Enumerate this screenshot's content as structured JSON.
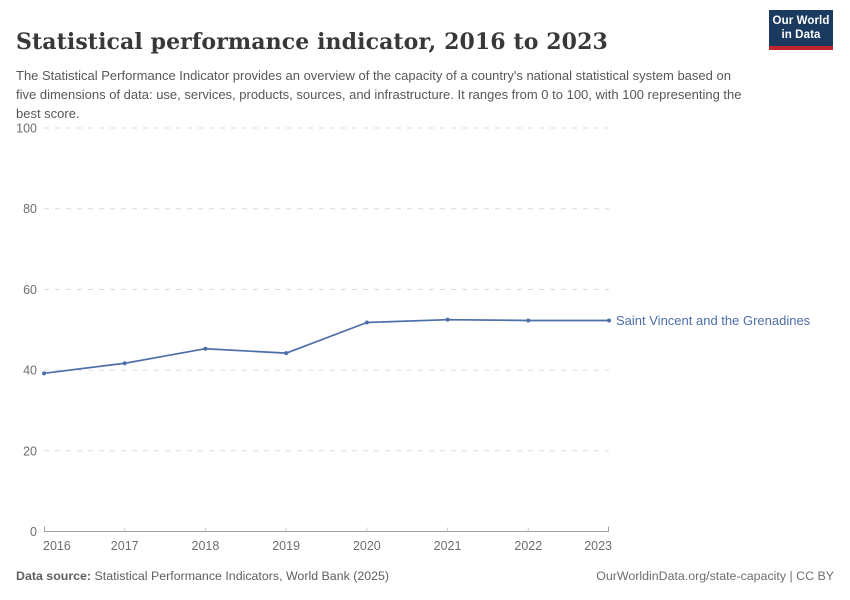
{
  "header": {
    "title": "Statistical performance indicator, 2016 to 2023",
    "subtitle": "The Statistical Performance Indicator provides an overview of the capacity of a country's national statistical system based on five dimensions of data: use, services, products, sources, and infrastructure. It ranges from 0 to 100, with 100 representing the best score.",
    "logo_line1": "Our World",
    "logo_line2": "in Data"
  },
  "chart_data": {
    "type": "line",
    "title": "Statistical performance indicator, 2016 to 2023",
    "x": [
      2016,
      2017,
      2018,
      2019,
      2020,
      2021,
      2022,
      2023
    ],
    "series": [
      {
        "name": "Saint Vincent and the Grenadines",
        "values": [
          39.2,
          41.7,
          45.3,
          44.2,
          51.8,
          52.5,
          52.3,
          52.3
        ],
        "color": "#4c6ea9"
      }
    ],
    "xlabel": "",
    "ylabel": "",
    "ylim": [
      0,
      100
    ],
    "yticks": [
      0,
      20,
      40,
      60,
      80,
      100
    ],
    "grid": "horizontal-dashed",
    "legend_position": "label-at-line-end"
  },
  "footer": {
    "source_label": "Data source:",
    "source_text": "Statistical Performance Indicators, World Bank (2025)",
    "credit": "OurWorldinData.org/state-capacity | CC BY"
  },
  "colors": {
    "line": "#4c6ea9",
    "gridline": "#dcdcdc",
    "axis": "#a1a1a1",
    "tick_text": "#6e6e6e",
    "logo_bg": "#1a3a60",
    "logo_stripe": "#c0262c"
  }
}
